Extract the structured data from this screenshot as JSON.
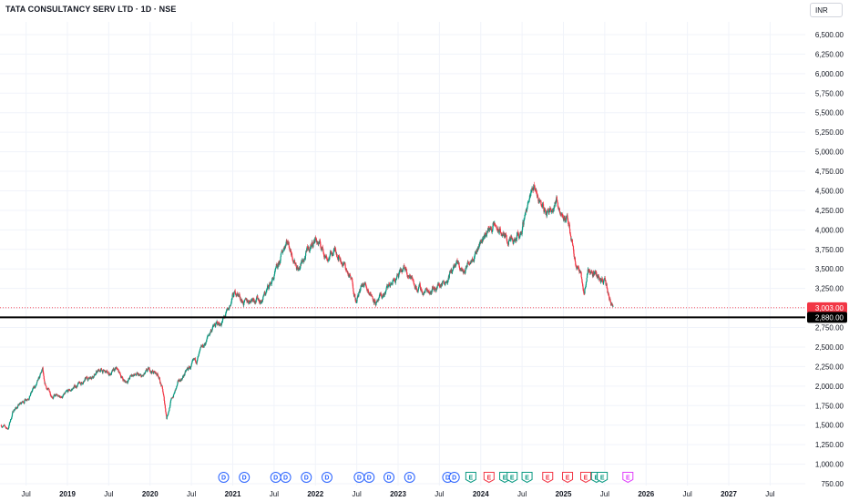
{
  "header": {
    "title": "TATA CONSULTANCY SERV LTD · 1D · NSE",
    "currency": "INR"
  },
  "chart_data": {
    "type": "candlestick",
    "title": "TATA CONSULTANCY SERV LTD · 1D · NSE",
    "ylim": [
      750,
      6700
    ],
    "y_ticks": [
      "6,500.00",
      "6,250.00",
      "6,000.00",
      "5,750.00",
      "5,500.00",
      "5,250.00",
      "5,000.00",
      "4,750.00",
      "4,500.00",
      "4,250.00",
      "4,000.00",
      "3,750.00",
      "3,500.00",
      "3,250.00",
      "3,000.00",
      "2,750.00",
      "2,500.00",
      "2,250.00",
      "2,000.00",
      "1,750.00",
      "1,500.00",
      "1,250.00",
      "1,000.00",
      "750.00"
    ],
    "y_tick_values": [
      6500,
      6250,
      6000,
      5750,
      5500,
      5250,
      5000,
      4750,
      4500,
      4250,
      4000,
      3750,
      3500,
      3250,
      3000,
      2750,
      2500,
      2250,
      2000,
      1750,
      1500,
      1250,
      1000,
      750
    ],
    "x_ticks": [
      {
        "label": "Jul",
        "t": 2018.5,
        "year": false
      },
      {
        "label": "2019",
        "t": 2019.0,
        "year": true
      },
      {
        "label": "Jul",
        "t": 2019.5,
        "year": false
      },
      {
        "label": "2020",
        "t": 2020.0,
        "year": true
      },
      {
        "label": "Jul",
        "t": 2020.5,
        "year": false
      },
      {
        "label": "2021",
        "t": 2021.0,
        "year": true
      },
      {
        "label": "Jul",
        "t": 2021.5,
        "year": false
      },
      {
        "label": "2022",
        "t": 2022.0,
        "year": true
      },
      {
        "label": "Jul",
        "t": 2022.5,
        "year": false
      },
      {
        "label": "2023",
        "t": 2023.0,
        "year": true
      },
      {
        "label": "Jul",
        "t": 2023.5,
        "year": false
      },
      {
        "label": "2024",
        "t": 2024.0,
        "year": true
      },
      {
        "label": "Jul",
        "t": 2024.5,
        "year": false
      },
      {
        "label": "2025",
        "t": 2025.0,
        "year": true
      },
      {
        "label": "Jul",
        "t": 2025.5,
        "year": false
      },
      {
        "label": "2026",
        "t": 2026.0,
        "year": true
      },
      {
        "label": "Jul",
        "t": 2026.5,
        "year": false
      },
      {
        "label": "2027",
        "t": 2027.0,
        "year": true
      },
      {
        "label": "Jul",
        "t": 2027.5,
        "year": false
      }
    ],
    "xlim": [
      2018.2,
      2028.0
    ],
    "price_path": [
      [
        2018.2,
        1500
      ],
      [
        2018.28,
        1450
      ],
      [
        2018.35,
        1700
      ],
      [
        2018.45,
        1780
      ],
      [
        2018.55,
        1900
      ],
      [
        2018.65,
        2050
      ],
      [
        2018.7,
        2200
      ],
      [
        2018.72,
        2000
      ],
      [
        2018.8,
        1900
      ],
      [
        2018.9,
        1850
      ],
      [
        2019.0,
        1900
      ],
      [
        2019.1,
        2000
      ],
      [
        2019.2,
        2050
      ],
      [
        2019.3,
        2150
      ],
      [
        2019.4,
        2200
      ],
      [
        2019.5,
        2150
      ],
      [
        2019.6,
        2200
      ],
      [
        2019.7,
        2050
      ],
      [
        2019.8,
        2150
      ],
      [
        2019.9,
        2100
      ],
      [
        2020.0,
        2200
      ],
      [
        2020.1,
        2150
      ],
      [
        2020.15,
        1950
      ],
      [
        2020.2,
        1600
      ],
      [
        2020.25,
        1800
      ],
      [
        2020.35,
        2050
      ],
      [
        2020.45,
        2200
      ],
      [
        2020.55,
        2300
      ],
      [
        2020.65,
        2500
      ],
      [
        2020.75,
        2750
      ],
      [
        2020.85,
        2800
      ],
      [
        2020.95,
        2950
      ],
      [
        2021.0,
        3150
      ],
      [
        2021.05,
        3200
      ],
      [
        2021.15,
        3050
      ],
      [
        2021.25,
        3150
      ],
      [
        2021.35,
        3100
      ],
      [
        2021.45,
        3300
      ],
      [
        2021.55,
        3500
      ],
      [
        2021.65,
        3900
      ],
      [
        2021.7,
        3750
      ],
      [
        2021.8,
        3500
      ],
      [
        2021.9,
        3700
      ],
      [
        2022.0,
        3900
      ],
      [
        2022.05,
        3800
      ],
      [
        2022.15,
        3650
      ],
      [
        2022.25,
        3750
      ],
      [
        2022.35,
        3550
      ],
      [
        2022.45,
        3300
      ],
      [
        2022.5,
        3100
      ],
      [
        2022.55,
        3250
      ],
      [
        2022.6,
        3300
      ],
      [
        2022.7,
        3150
      ],
      [
        2022.75,
        3050
      ],
      [
        2022.85,
        3200
      ],
      [
        2022.95,
        3350
      ],
      [
        2023.1,
        3500
      ],
      [
        2023.2,
        3300
      ],
      [
        2023.3,
        3200
      ],
      [
        2023.4,
        3250
      ],
      [
        2023.5,
        3300
      ],
      [
        2023.6,
        3400
      ],
      [
        2023.7,
        3550
      ],
      [
        2023.8,
        3450
      ],
      [
        2023.9,
        3700
      ],
      [
        2024.0,
        3850
      ],
      [
        2024.05,
        3950
      ],
      [
        2024.15,
        4050
      ],
      [
        2024.25,
        3950
      ],
      [
        2024.35,
        3850
      ],
      [
        2024.4,
        3800
      ],
      [
        2024.5,
        4000
      ],
      [
        2024.55,
        4300
      ],
      [
        2024.6,
        4400
      ],
      [
        2024.65,
        4550
      ],
      [
        2024.7,
        4400
      ],
      [
        2024.8,
        4200
      ],
      [
        2024.9,
        4400
      ],
      [
        2024.95,
        4300
      ],
      [
        2025.05,
        4100
      ],
      [
        2025.1,
        3900
      ],
      [
        2025.15,
        3600
      ],
      [
        2025.2,
        3450
      ],
      [
        2025.25,
        3200
      ],
      [
        2025.3,
        3500
      ],
      [
        2025.35,
        3450
      ],
      [
        2025.45,
        3400
      ],
      [
        2025.5,
        3350
      ],
      [
        2025.55,
        3100
      ],
      [
        2025.6,
        3003
      ]
    ],
    "last_price": 3003.0,
    "last_price_label": "3,003.00",
    "level_label": "2,880.00",
    "level_value": 2880,
    "event_markers": [
      {
        "label": "D",
        "t": 2020.89,
        "kind": "dividend"
      },
      {
        "label": "D",
        "t": 2021.14,
        "kind": "dividend"
      },
      {
        "label": "D",
        "t": 2021.52,
        "kind": "dividend"
      },
      {
        "label": "D",
        "t": 2021.64,
        "kind": "dividend"
      },
      {
        "label": "D",
        "t": 2021.89,
        "kind": "dividend"
      },
      {
        "label": "D",
        "t": 2022.14,
        "kind": "dividend"
      },
      {
        "label": "D",
        "t": 2022.53,
        "kind": "dividend"
      },
      {
        "label": "D",
        "t": 2022.65,
        "kind": "dividend"
      },
      {
        "label": "D",
        "t": 2022.89,
        "kind": "dividend"
      },
      {
        "label": "D",
        "t": 2023.14,
        "kind": "dividend"
      },
      {
        "label": "D",
        "t": 2023.6,
        "kind": "dividend"
      },
      {
        "label": "D",
        "t": 2023.68,
        "kind": "dividend"
      },
      {
        "label": "E",
        "t": 2023.88,
        "kind": "earnings-up"
      },
      {
        "label": "E",
        "t": 2024.1,
        "kind": "earnings-down"
      },
      {
        "label": "E",
        "t": 2024.29,
        "kind": "earnings-up"
      },
      {
        "label": "E",
        "t": 2024.38,
        "kind": "earnings-up"
      },
      {
        "label": "E",
        "t": 2024.56,
        "kind": "earnings-up"
      },
      {
        "label": "E",
        "t": 2024.81,
        "kind": "earnings-down"
      },
      {
        "label": "E",
        "t": 2025.05,
        "kind": "earnings-down"
      },
      {
        "label": "E",
        "t": 2025.27,
        "kind": "earnings-down"
      },
      {
        "label": "E",
        "t": 2025.4,
        "kind": "earnings-up"
      },
      {
        "label": "E",
        "t": 2025.47,
        "kind": "earnings-up"
      },
      {
        "label": "E",
        "t": 2025.78,
        "kind": "earnings-future"
      }
    ],
    "colors": {
      "up": "#089981",
      "down": "#f23645",
      "level_line": "#000000",
      "last_price_tag": "#f23645",
      "level_tag": "#000000",
      "dividend": "#2962ff",
      "earnings_up": "#089981",
      "earnings_down": "#f23645",
      "earnings_future": "#e040fb"
    }
  }
}
